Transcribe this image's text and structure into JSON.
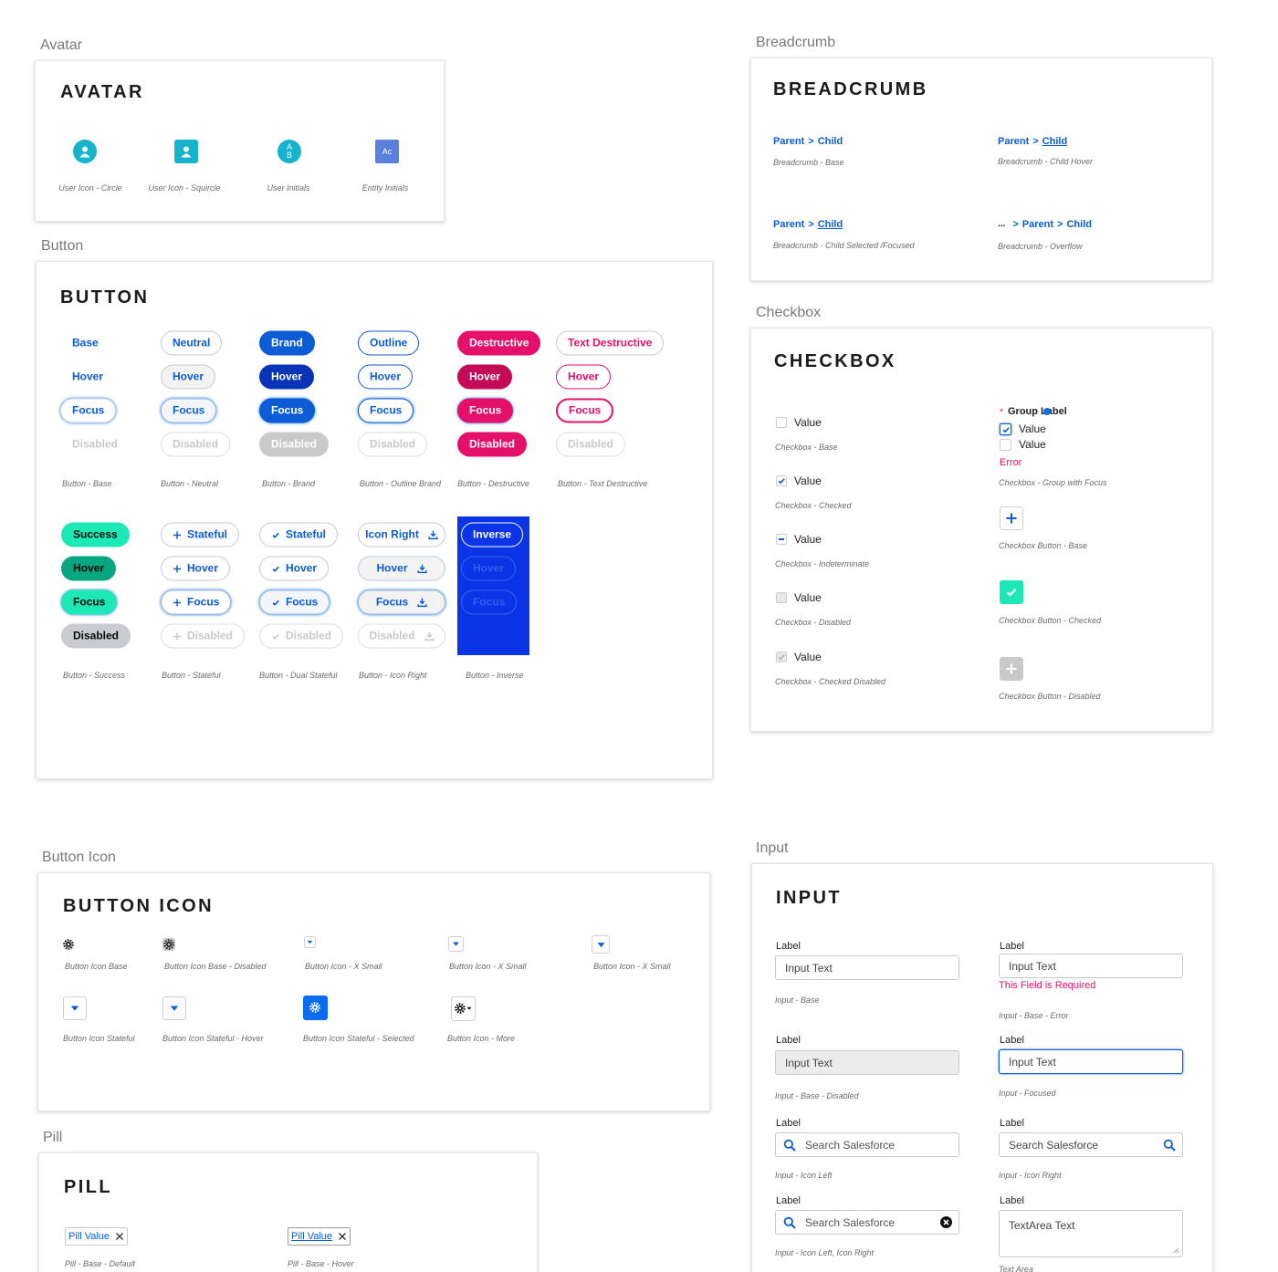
{
  "avatar": {
    "section_label": "Avatar",
    "title": "AVATAR",
    "items": [
      {
        "caption": "User Icon - Circle"
      },
      {
        "caption": "User Icon - Squircle"
      },
      {
        "initials": "AB",
        "caption": "User Initials"
      },
      {
        "initials": "Ac",
        "caption": "Entity Initials"
      }
    ]
  },
  "breadcrumb": {
    "section_label": "Breadcrumb",
    "title": "BREADCRUMB",
    "separator": ">",
    "items": [
      {
        "crumbs": [
          "Parent",
          "Child"
        ],
        "caption": "Breadcrumb - Base"
      },
      {
        "crumbs": [
          "Parent",
          "Child"
        ],
        "caption": "Breadcrumb - Child Hover"
      },
      {
        "crumbs": [
          "Parent",
          "Child"
        ],
        "caption": "Breadcrumb - Child Selected /Focused"
      },
      {
        "crumbs": [
          "...",
          "Parent",
          "Child"
        ],
        "caption": "Breadcrumb - Overflow"
      }
    ]
  },
  "button": {
    "section_label": "Button",
    "title": "BUTTON",
    "groups": [
      {
        "labels": [
          "Base",
          "Hover",
          "Focus",
          "Disabled"
        ],
        "caption": "Button - Base"
      },
      {
        "labels": [
          "Neutral",
          "Hover",
          "Focus",
          "Disabled"
        ],
        "caption": "Button - Neutral"
      },
      {
        "labels": [
          "Brand",
          "Hover",
          "Focus",
          "Disabled"
        ],
        "caption": "Button - Brand"
      },
      {
        "labels": [
          "Outline",
          "Hover",
          "Focus",
          "Disabled"
        ],
        "caption": "Button - Outline Brand"
      },
      {
        "labels": [
          "Destructive",
          "Hover",
          "Focus",
          "Disabled"
        ],
        "caption": "Button - Destructive"
      },
      {
        "labels": [
          "Text Destructive",
          "Hover",
          "Focus",
          "Disabled"
        ],
        "caption": "Button - Text Destructive"
      },
      {
        "labels": [
          "Success",
          "Hover",
          "Focus",
          "Disabled"
        ],
        "caption": "Button - Success"
      },
      {
        "labels": [
          "Stateful",
          "Hover",
          "Focus",
          "Disabled"
        ],
        "caption": "Button - Stateful"
      },
      {
        "labels": [
          "Stateful",
          "Hover",
          "Focus",
          "Disabled"
        ],
        "caption": "Button - Dual Stateful"
      },
      {
        "labels": [
          "Icon Right",
          "Hover",
          "Focus",
          "Disabled"
        ],
        "caption": "Button - Icon Right"
      },
      {
        "labels": [
          "Inverse",
          "Hover",
          "Focus"
        ],
        "caption": "Button - Inverse"
      }
    ]
  },
  "checkbox": {
    "section_label": "Checkbox",
    "title": "CHECKBOX",
    "items": [
      {
        "label": "Value",
        "caption": "Checkbox - Base"
      },
      {
        "label": "Value",
        "caption": "Checkbox - Checked"
      },
      {
        "label": "Value",
        "caption": "Checkbox - Indeterminate"
      },
      {
        "label": "Value",
        "caption": "Checkbox - Disabled"
      },
      {
        "label": "Value",
        "caption": "Checkbox - Checked Disabled"
      }
    ],
    "group": {
      "required": "*",
      "label": "Group Label",
      "options": [
        "Value",
        "Value"
      ],
      "error": "Error",
      "caption": "Checkbox -  Group with Focus"
    },
    "buttons": [
      {
        "caption": "Checkbox Button -  Base"
      },
      {
        "caption": "Checkbox Button -  Checked"
      },
      {
        "caption": "Checkbox Button -  Disabled"
      }
    ]
  },
  "button_icon": {
    "section_label": "Button Icon",
    "title": "BUTTON ICON",
    "captions": [
      "Button Icon Base",
      "Button Icon Base - Disabled",
      "Button Icon - X Small",
      "Button Icon - X Small",
      "Button Icon - X Small",
      "Button Icon Stateful",
      "Button Icon Stateful - Hover",
      "Button Icon Stateful - Selected",
      "Button Icon - More"
    ]
  },
  "input": {
    "section_label": "Input",
    "title": "INPUT",
    "items": [
      {
        "label": "Label",
        "value": "Input Text",
        "caption": "Input - Base"
      },
      {
        "label": "Label",
        "value": "Input Text",
        "message": "This Field is Required",
        "caption": "Input - Base - Error"
      },
      {
        "label": "Label",
        "value": "Input Text",
        "caption": "Input - Base - Disabled"
      },
      {
        "label": "Label",
        "value": "Input Text",
        "caption": "Input - Focused"
      },
      {
        "label": "Label",
        "value": "Search Salesforce",
        "caption": "Input - Icon Left"
      },
      {
        "label": "Label",
        "value": "Search Salesforce",
        "caption": "Input - Icon Right"
      },
      {
        "label": "Label",
        "value": "Search Salesforce",
        "caption": "Input - Icon Left, Icon Right"
      },
      {
        "label": "Label",
        "value": "TextArea Text",
        "caption": "Text Area"
      }
    ]
  },
  "pill": {
    "section_label": "Pill",
    "title": "PILL",
    "items": [
      {
        "label": "Pill Value",
        "caption": "Pill - Base - Default"
      },
      {
        "label": "Pill Value",
        "caption": "Pill - Base - Hover"
      }
    ]
  }
}
